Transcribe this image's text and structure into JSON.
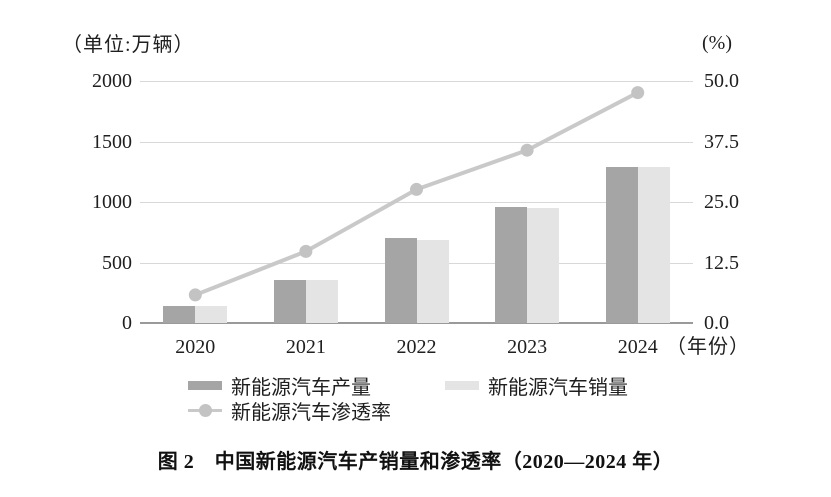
{
  "chart_data": {
    "type": "combo",
    "title": "",
    "caption": "图 2　中国新能源汽车产销量和渗透率（2020—2024 年）",
    "categories": [
      "2020",
      "2021",
      "2022",
      "2023",
      "2024"
    ],
    "series": [
      {
        "key": "production",
        "name": "新能源汽车产量",
        "type": "bar",
        "axis": "left",
        "color": "#a5a5a5",
        "values": [
          136.6,
          354.5,
          705.8,
          958.7,
          1288.8
        ]
      },
      {
        "key": "sales",
        "name": "新能源汽车销量",
        "type": "bar",
        "axis": "left",
        "color": "#e4e4e5",
        "values": [
          136.7,
          352.1,
          688.7,
          949.5,
          1286.6
        ]
      },
      {
        "key": "penetration",
        "name": "新能源汽车渗透率",
        "type": "line",
        "axis": "right",
        "color": "#c9c9c9",
        "dot_color": "#c3c3c3",
        "values": [
          5.8,
          14.8,
          27.6,
          35.7,
          47.6
        ]
      }
    ],
    "left_axis": {
      "unit": "（单位:万辆）",
      "ticks": [
        "2000",
        "1500",
        "1000",
        "500",
        "0"
      ],
      "min": 0,
      "max": 2000
    },
    "right_axis": {
      "unit": "(%)",
      "ticks": [
        "50.0",
        "37.5",
        "25.0",
        "12.5",
        "0.0"
      ],
      "min": 0,
      "max": 50
    },
    "x_axis": {
      "suffix": "（年份）"
    },
    "grid": true,
    "legend_position": "bottom",
    "colors": {
      "gridline": "#d8d8d8",
      "axis_line": "#9a9a9a",
      "text": "#1f1f1f"
    }
  }
}
